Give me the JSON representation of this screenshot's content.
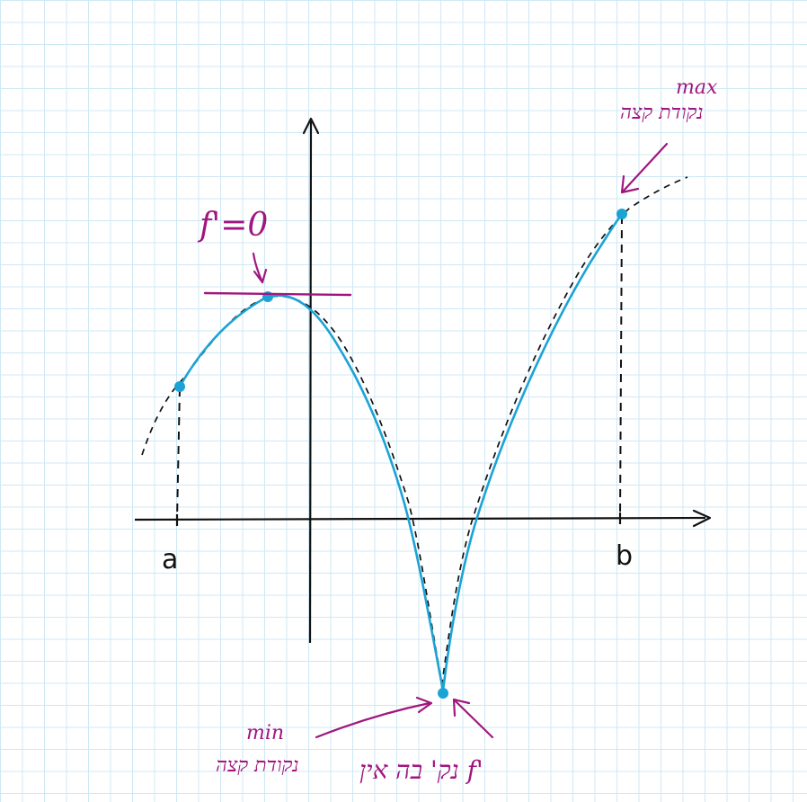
{
  "colors": {
    "ink": "#111111",
    "curve": "#1ba3d6",
    "annotation": "#a0167f",
    "grid": "#cfe8f5"
  },
  "axes": {
    "x_left_label": "a",
    "x_right_label": "b"
  },
  "annotations": {
    "derivative_zero": "f'=0",
    "max_top": "max",
    "max_bottom": "נקודת קצה",
    "min_top": "min",
    "min_bottom": "נקודת קצה",
    "nondiff_label": "נק' בה אין f'"
  },
  "points": [
    {
      "name": "left-endpoint"
    },
    {
      "name": "local-max"
    },
    {
      "name": "cusp-min"
    },
    {
      "name": "right-endpoint"
    }
  ]
}
